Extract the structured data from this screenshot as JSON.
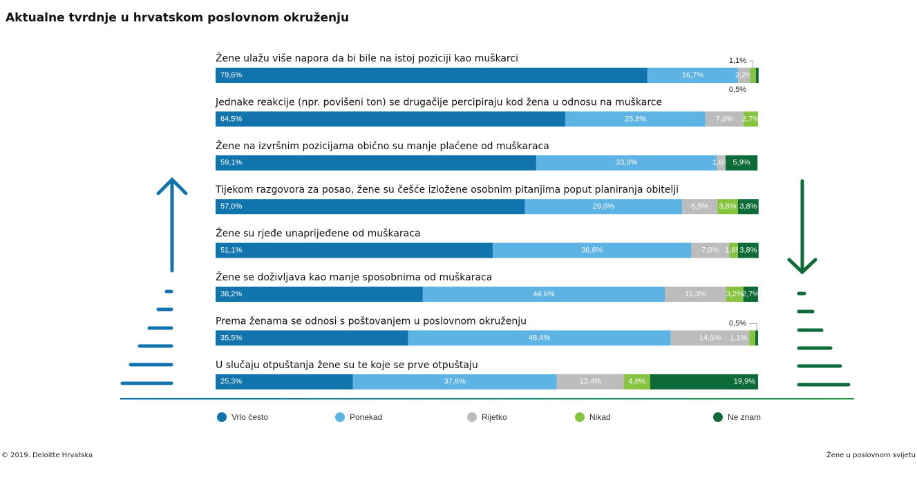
{
  "chart_data": {
    "type": "stacked-bar",
    "orientation": "horizontal",
    "title": "Aktualne tvrdnje u hrvatskom poslovnom okruženju",
    "categories": [
      "Žene ulažu više napora da bi bile na istoj poziciji kao muškarci",
      "Jednake reakcije (npr. povišeni ton) se drugačije percipiraju kod žena u odnosu na muškarce",
      "Žene na izvršnim pozicijama obično su manje plaćene od muškaraca",
      "Tijekom razgovora za posao, žene su češće izložene osobnim pitanjima poput planiranja obitelji",
      "Žene su rjeđe unaprijeđene od muškaraca",
      "Žene se doživljava kao manje sposobnima od muškaraca",
      "Prema ženama se odnosi s poštovanjem u poslovnom okruženju",
      "U slučaju otpuštanja žene su te koje se prve otpuštaju"
    ],
    "xlim": [
      0,
      100
    ],
    "series": [
      {
        "name": "Vrlo često",
        "color": "#1274ad",
        "values": [
          79.6,
          64.5,
          59.1,
          57.0,
          51.1,
          38.2,
          35.5,
          25.3
        ],
        "value_labels": [
          "79,6%",
          "64,5%",
          "59,1%",
          "57,0%",
          "51,1%",
          "38,2%",
          "35,5%",
          "25,3%"
        ]
      },
      {
        "name": "Ponekad",
        "color": "#5cb3e4",
        "values": [
          16.7,
          25.8,
          33.3,
          29.0,
          36.6,
          44.6,
          48.4,
          37.6
        ],
        "value_labels": [
          "16,7%",
          "25,8%",
          "33,3%",
          "29,0%",
          "36,6%",
          "44,6%",
          "48,4%",
          "37,6%"
        ]
      },
      {
        "name": "Rijetko",
        "color": "#bcbcbc",
        "values": [
          2.2,
          7.0,
          1.6,
          6.5,
          7.0,
          11.3,
          14.5,
          12.4
        ],
        "value_labels": [
          "2,2%",
          "7,0%",
          "1,6%",
          "6,5%",
          "7,0%",
          "11,3%",
          "14,5%",
          "12,4%"
        ]
      },
      {
        "name": "Nikad",
        "color": "#86c440",
        "values": [
          1.1,
          2.7,
          null,
          3.8,
          1.6,
          3.2,
          1.1,
          4.8
        ],
        "value_labels": [
          "1,1%",
          "2,7%",
          null,
          "3,8%",
          "1,6%",
          "3,2%",
          "1,1%",
          "4,8%"
        ]
      },
      {
        "name": "Ne znam",
        "color": "#0d6b38",
        "values": [
          0.5,
          null,
          5.9,
          3.8,
          3.8,
          2.7,
          0.5,
          19.9
        ],
        "value_labels": [
          "0,5%",
          null,
          "5,9%",
          "3,8%",
          "3,8%",
          "2,7%",
          "0,5%",
          "19,9%"
        ]
      }
    ]
  },
  "footer": {
    "left": "© 2019. Deloitte Hrvatska",
    "right": "Žene u poslovnom svijetu"
  }
}
